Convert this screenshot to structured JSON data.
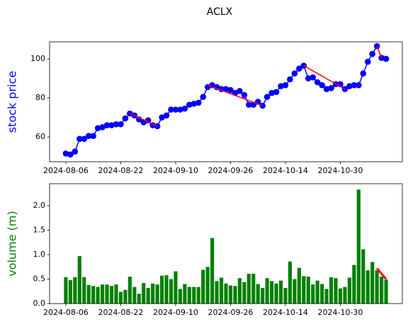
{
  "chart_data": [
    {
      "type": "line",
      "title": "ACLX",
      "ylabel": "stock price",
      "ylabel_color": "#0000ff",
      "categories": [
        "2024-08-06",
        null,
        null,
        null,
        null,
        null,
        null,
        null,
        null,
        null,
        null,
        null,
        "2024-08-22",
        null,
        null,
        null,
        null,
        null,
        null,
        null,
        null,
        null,
        null,
        null,
        "2024-09-10",
        null,
        null,
        null,
        null,
        null,
        null,
        null,
        null,
        null,
        null,
        null,
        "2024-09-26",
        null,
        null,
        null,
        null,
        null,
        null,
        null,
        null,
        null,
        null,
        null,
        "2024-10-14",
        null,
        null,
        null,
        null,
        null,
        null,
        null,
        null,
        null,
        null,
        null,
        "2024-10-30",
        null,
        null,
        null,
        null,
        null,
        null,
        null,
        null,
        null,
        null
      ],
      "series": [
        {
          "color": "#0000ff",
          "marker": true,
          "values": [
            51.5,
            51,
            52.5,
            59,
            59,
            60.5,
            60.5,
            64.5,
            65,
            66,
            66,
            66.5,
            66.5,
            69.5,
            72,
            71,
            69,
            67.5,
            68.5,
            66,
            65.5,
            70,
            71,
            74,
            74,
            74,
            74.5,
            76.5,
            77,
            77.5,
            80.5,
            85.5,
            86.5,
            85.5,
            84.5,
            84.5,
            84,
            82.5,
            83.5,
            81.5,
            76.5,
            76.5,
            78,
            76,
            80.5,
            82.5,
            83,
            86,
            86.5,
            89.5,
            92.5,
            95,
            96.5,
            90,
            90.5,
            88,
            86.5,
            84.5,
            85,
            87,
            87,
            84.5,
            86,
            86.5,
            86.5,
            92.5,
            98.5,
            102.5,
            106.5,
            100.5,
            100
          ]
        },
        {
          "color": "#ff0000",
          "marker": false,
          "values": [
            null,
            null,
            null,
            null,
            null,
            null,
            null,
            null,
            null,
            null,
            null,
            null,
            null,
            null,
            72,
            70.9,
            69.8,
            68.8,
            67.7,
            66.6,
            65.5,
            null,
            null,
            null,
            null,
            null,
            null,
            null,
            null,
            null,
            null,
            86.5,
            85.6,
            84.8,
            83.9,
            83.0,
            82.1,
            81.3,
            80.4,
            79.5,
            78.6,
            77.8,
            76.9,
            76,
            null,
            null,
            null,
            null,
            null,
            null,
            null,
            null,
            96.5,
            95.2,
            93.8,
            92.5,
            91.2,
            89.8,
            88.5,
            87.2,
            85.8,
            84.5,
            null,
            null,
            null,
            null,
            null,
            null,
            106.5,
            100.5,
            null
          ]
        }
      ],
      "xlim": [
        -3.55,
        73.55
      ],
      "ylim": [
        47.3,
        108.7
      ],
      "yticks": [
        60,
        80,
        100
      ]
    },
    {
      "type": "bar",
      "ylabel": "volume (m)",
      "ylabel_color": "#008000",
      "categories": [
        "2024-08-06",
        null,
        null,
        null,
        null,
        null,
        null,
        null,
        null,
        null,
        null,
        null,
        "2024-08-22",
        null,
        null,
        null,
        null,
        null,
        null,
        null,
        null,
        null,
        null,
        null,
        "2024-09-10",
        null,
        null,
        null,
        null,
        null,
        null,
        null,
        null,
        null,
        null,
        null,
        "2024-09-26",
        null,
        null,
        null,
        null,
        null,
        null,
        null,
        null,
        null,
        null,
        null,
        "2024-10-14",
        null,
        null,
        null,
        null,
        null,
        null,
        null,
        null,
        null,
        null,
        null,
        "2024-10-30",
        null,
        null,
        null,
        null,
        null,
        null,
        null,
        null,
        null,
        null
      ],
      "series": [
        {
          "color": "#008000",
          "values": [
            0.54,
            0.48,
            0.54,
            0.97,
            0.54,
            0.38,
            0.36,
            0.34,
            0.39,
            0.39,
            0.36,
            0.39,
            0.24,
            0.28,
            0.55,
            0.34,
            0.2,
            0.42,
            0.32,
            0.41,
            0.39,
            0.57,
            0.58,
            0.5,
            0.66,
            0.3,
            0.4,
            0.34,
            0.34,
            0.34,
            0.69,
            0.75,
            1.34,
            0.46,
            0.53,
            0.41,
            0.37,
            0.36,
            0.52,
            0.44,
            0.61,
            0.61,
            0.4,
            0.32,
            0.52,
            0.46,
            0.41,
            0.47,
            0.32,
            0.86,
            0.5,
            0.73,
            0.56,
            0.55,
            0.39,
            0.47,
            0.4,
            0.3,
            0.54,
            0.52,
            0.31,
            0.34,
            0.53,
            0.79,
            2.33,
            1.11,
            0.68,
            0.85,
            0.68,
            0.55,
            0.49
          ]
        },
        {
          "color": "#ff0000",
          "type": "line",
          "values": [
            null,
            null,
            null,
            null,
            null,
            null,
            null,
            null,
            null,
            null,
            null,
            null,
            null,
            null,
            null,
            null,
            null,
            null,
            null,
            null,
            null,
            null,
            null,
            null,
            null,
            null,
            null,
            null,
            null,
            null,
            null,
            null,
            null,
            null,
            null,
            null,
            null,
            null,
            null,
            null,
            null,
            null,
            null,
            null,
            null,
            null,
            null,
            null,
            null,
            null,
            null,
            null,
            null,
            null,
            null,
            null,
            null,
            null,
            null,
            null,
            null,
            null,
            null,
            null,
            null,
            null,
            null,
            null,
            0.72,
            0.61,
            0.5
          ]
        }
      ],
      "xlim": [
        -3.55,
        73.55
      ],
      "ylim": [
        0,
        2.45
      ],
      "yticks": [
        {
          "value": 0,
          "label": "0.0"
        },
        0.5,
        {
          "value": 1,
          "label": "1.0"
        },
        1.5,
        {
          "value": 2,
          "label": "2.0"
        }
      ]
    }
  ]
}
